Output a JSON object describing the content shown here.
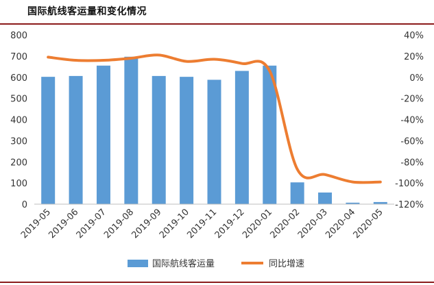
{
  "title": "国际航线客运量和变化情况",
  "chart_data": {
    "type": "bar+line",
    "categories": [
      "2019-05",
      "2019-06",
      "2019-07",
      "2019-08",
      "2019-09",
      "2019-10",
      "2019-11",
      "2019-12",
      "2020-01",
      "2020-02",
      "2020-03",
      "2020-04",
      "2020-05"
    ],
    "series": [
      {
        "name": "国际航线客运量",
        "type": "bar",
        "axis": "left",
        "color": "#5b9bd5",
        "values": [
          602,
          606,
          655,
          697,
          606,
          602,
          588,
          630,
          655,
          103,
          55,
          7,
          10
        ]
      },
      {
        "name": "同比增速",
        "type": "line",
        "axis": "right",
        "color": "#ed7d31",
        "values": [
          19,
          16,
          16,
          18,
          21,
          15,
          17,
          13,
          6,
          -87,
          -92,
          -99,
          -99
        ]
      }
    ],
    "y_left": {
      "min": 0,
      "max": 800,
      "ticks": [
        "0",
        "100",
        "200",
        "300",
        "400",
        "500",
        "600",
        "700",
        "800"
      ]
    },
    "y_right": {
      "min": -120,
      "max": 40,
      "ticks": [
        "-120%",
        "-100%",
        "-80%",
        "-60%",
        "-40%",
        "-20%",
        "0%",
        "20%",
        "40%"
      ]
    },
    "grid": false,
    "legend_position": "bottom"
  }
}
